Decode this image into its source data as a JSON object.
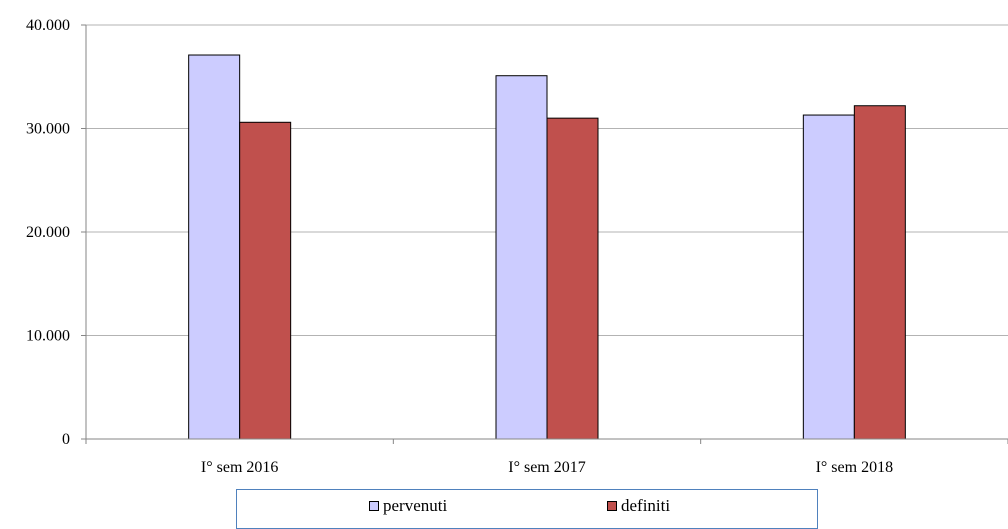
{
  "chart_data": {
    "type": "bar",
    "title": "",
    "xlabel": "",
    "ylabel": "",
    "categories": [
      "I° sem 2016",
      "I° sem 2017",
      "I° sem 2018"
    ],
    "series": [
      {
        "name": "pervenuti",
        "color": "#ccccff",
        "values": [
          37100,
          35100,
          31300
        ]
      },
      {
        "name": "definiti",
        "color": "#c0504d",
        "values": [
          30600,
          31000,
          32200
        ]
      }
    ],
    "ylim": [
      0,
      40000
    ],
    "yticks": [
      "0",
      "10.000",
      "20.000",
      "30.000",
      "40.000"
    ],
    "ytick_values": [
      0,
      10000,
      20000,
      30000,
      40000
    ],
    "grid": true,
    "legend_position": "bottom"
  }
}
